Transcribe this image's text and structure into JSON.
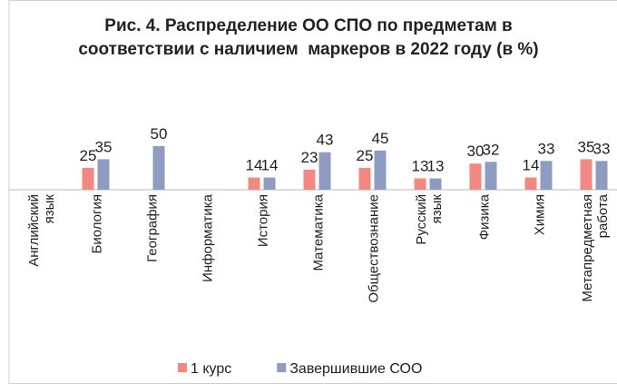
{
  "chart_data": {
    "type": "bar",
    "title": "Рис. 4. Распределение ОО СПО по предметам в соответствии с наличием  маркеров в 2022 году (в %)",
    "categories": [
      "Английский язык",
      "Биология",
      "География",
      "Информатика",
      "История",
      "Математика",
      "Обществознание",
      "Русский язык",
      "Физика",
      "Химия",
      "Метапредметная работа"
    ],
    "series": [
      {
        "name": "1 курс",
        "color": "#f4877f",
        "values": [
          null,
          25,
          null,
          null,
          14,
          23,
          25,
          13,
          30,
          14,
          35
        ]
      },
      {
        "name": "Завершившие СОО",
        "color": "#8e9cc3",
        "values": [
          null,
          35,
          50,
          null,
          14,
          43,
          45,
          13,
          32,
          33,
          33
        ]
      }
    ],
    "ylim": [
      0,
      50
    ],
    "legend": "bottom"
  }
}
